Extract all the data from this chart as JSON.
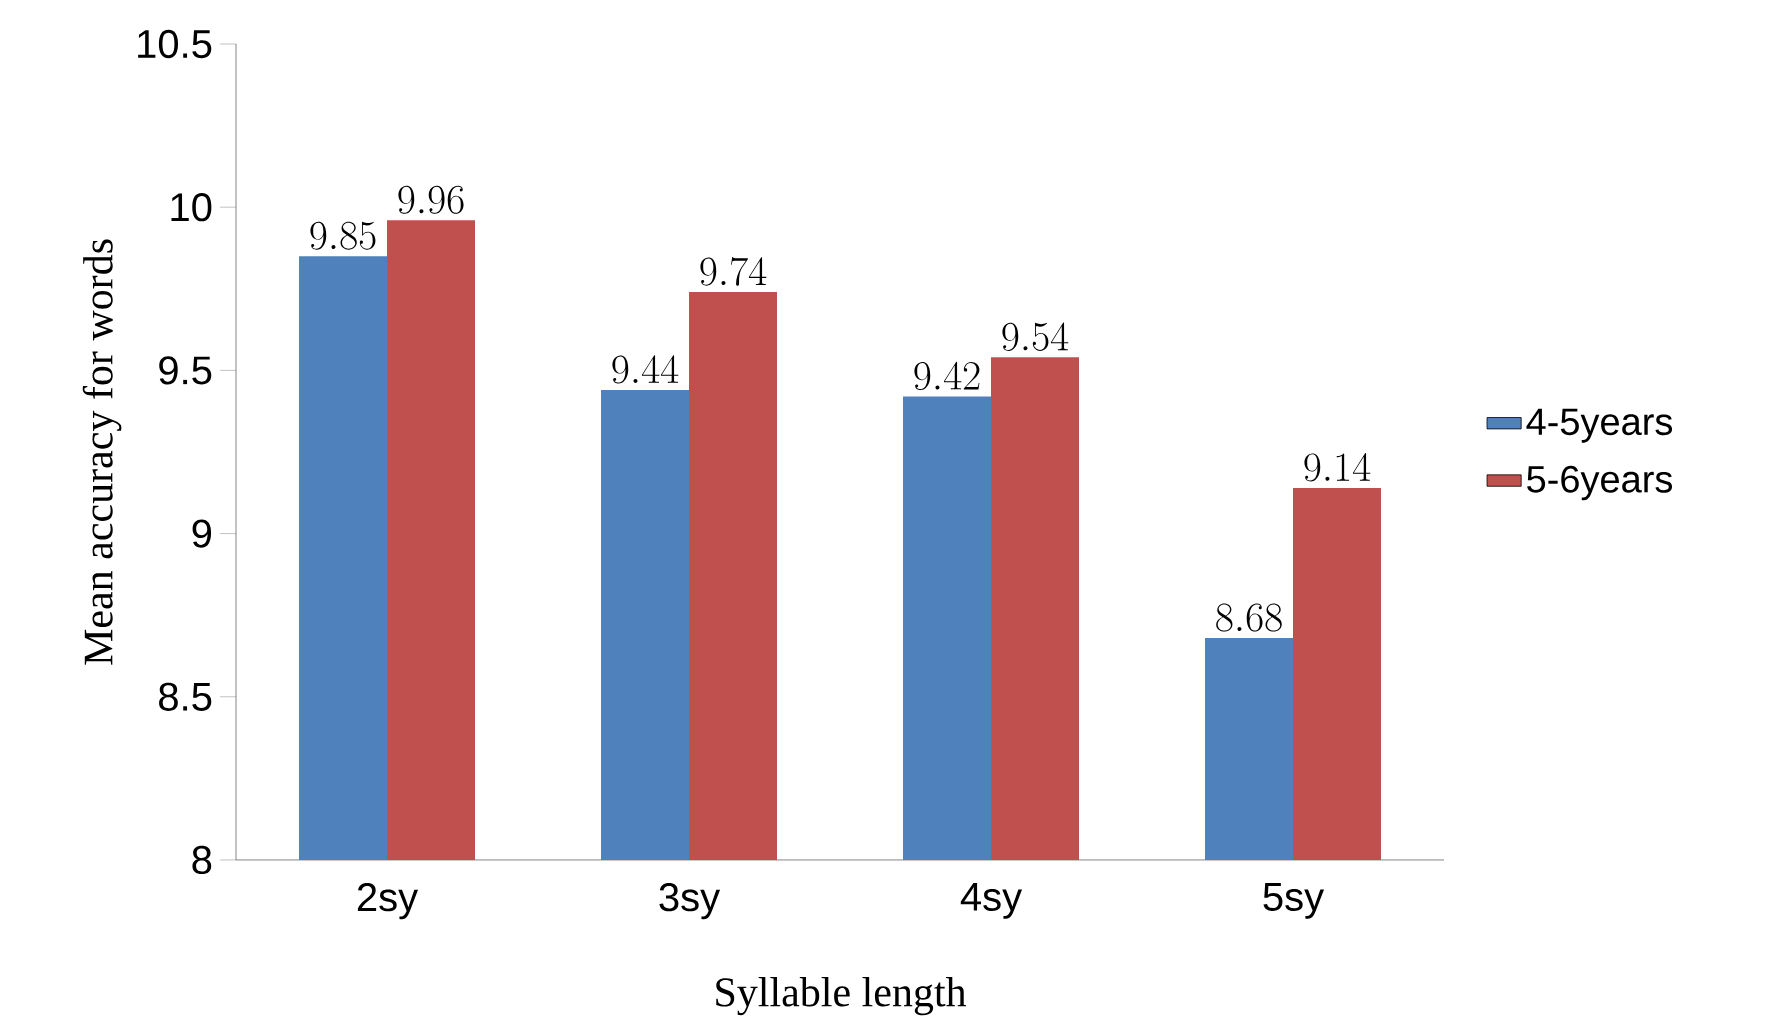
{
  "chart_data": {
    "type": "bar",
    "xlabel": "Syllable length",
    "ylabel": "Mean accuracy for  words",
    "categories": [
      "2sy",
      "3sy",
      "4sy",
      "5sy"
    ],
    "series": [
      {
        "name": "4-5years",
        "color": "#4f81bd",
        "values": [
          9.85,
          9.44,
          9.42,
          8.68
        ]
      },
      {
        "name": "5-6years",
        "color": "#c0504d",
        "values": [
          9.96,
          9.74,
          9.54,
          9.14
        ]
      }
    ],
    "ylim": [
      8,
      10.5
    ],
    "yticks": [
      8,
      8.5,
      9,
      9.5,
      10,
      10.5
    ],
    "data_labels": true,
    "legend": "right",
    "grid": false
  }
}
